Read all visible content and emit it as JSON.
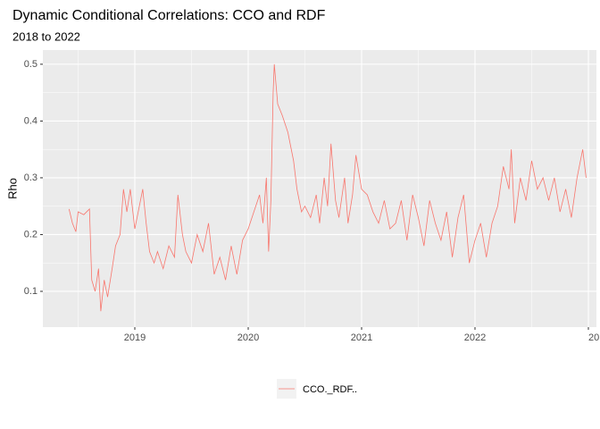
{
  "chart_data": {
    "type": "line",
    "title": "Dynamic Conditional Correlations: CCO and RDF",
    "subtitle": "2018 to 2022",
    "y_label": "Rho",
    "x": [
      2018.42,
      2018.45,
      2018.48,
      2018.5,
      2018.55,
      2018.6,
      2018.62,
      2018.65,
      2018.68,
      2018.7,
      2018.73,
      2018.76,
      2018.8,
      2018.83,
      2018.87,
      2018.9,
      2018.93,
      2018.96,
      2019.0,
      2019.03,
      2019.07,
      2019.1,
      2019.13,
      2019.17,
      2019.2,
      2019.25,
      2019.3,
      2019.35,
      2019.38,
      2019.42,
      2019.45,
      2019.5,
      2019.55,
      2019.6,
      2019.65,
      2019.7,
      2019.75,
      2019.8,
      2019.85,
      2019.9,
      2019.95,
      2020.0,
      2020.05,
      2020.1,
      2020.13,
      2020.16,
      2020.18,
      2020.2,
      2020.22,
      2020.23,
      2020.26,
      2020.3,
      2020.35,
      2020.4,
      2020.43,
      2020.47,
      2020.5,
      2020.55,
      2020.6,
      2020.63,
      2020.67,
      2020.7,
      2020.73,
      2020.77,
      2020.8,
      2020.85,
      2020.88,
      2020.92,
      2020.95,
      2021.0,
      2021.05,
      2021.1,
      2021.15,
      2021.2,
      2021.25,
      2021.3,
      2021.35,
      2021.4,
      2021.45,
      2021.5,
      2021.55,
      2021.6,
      2021.65,
      2021.7,
      2021.75,
      2021.8,
      2021.85,
      2021.9,
      2021.95,
      2022.0,
      2022.05,
      2022.1,
      2022.15,
      2022.2,
      2022.25,
      2022.3,
      2022.32,
      2022.35,
      2022.4,
      2022.45,
      2022.5,
      2022.55,
      2022.6,
      2022.65,
      2022.7,
      2022.75,
      2022.8,
      2022.85,
      2022.9,
      2022.95,
      2022.98
    ],
    "series": [
      {
        "name": "CCO._RDF..",
        "color": "#F8766D",
        "values": [
          0.245,
          0.22,
          0.205,
          0.24,
          0.235,
          0.245,
          0.12,
          0.1,
          0.14,
          0.065,
          0.12,
          0.09,
          0.14,
          0.18,
          0.2,
          0.28,
          0.24,
          0.28,
          0.21,
          0.24,
          0.28,
          0.22,
          0.17,
          0.15,
          0.17,
          0.14,
          0.18,
          0.16,
          0.27,
          0.2,
          0.17,
          0.15,
          0.2,
          0.17,
          0.22,
          0.13,
          0.16,
          0.12,
          0.18,
          0.13,
          0.19,
          0.21,
          0.24,
          0.27,
          0.22,
          0.3,
          0.17,
          0.26,
          0.45,
          0.5,
          0.43,
          0.41,
          0.38,
          0.33,
          0.28,
          0.24,
          0.25,
          0.23,
          0.27,
          0.22,
          0.3,
          0.25,
          0.36,
          0.26,
          0.23,
          0.3,
          0.22,
          0.27,
          0.34,
          0.28,
          0.27,
          0.24,
          0.22,
          0.26,
          0.21,
          0.22,
          0.26,
          0.19,
          0.27,
          0.23,
          0.18,
          0.26,
          0.22,
          0.19,
          0.24,
          0.16,
          0.23,
          0.27,
          0.15,
          0.19,
          0.22,
          0.16,
          0.22,
          0.25,
          0.32,
          0.28,
          0.35,
          0.22,
          0.3,
          0.26,
          0.33,
          0.28,
          0.3,
          0.26,
          0.3,
          0.24,
          0.28,
          0.23,
          0.3,
          0.35,
          0.3
        ]
      }
    ],
    "xlim": [
      2018.189,
      2023.071
    ],
    "xticks": [
      2019,
      2020,
      2021,
      2022,
      {
        "value": 2023,
        "label": "20"
      }
    ],
    "ylim": [
      0.037,
      0.525
    ],
    "yticks": [
      0.1,
      0.2,
      0.3,
      0.4,
      0.5
    ],
    "grid": true
  }
}
